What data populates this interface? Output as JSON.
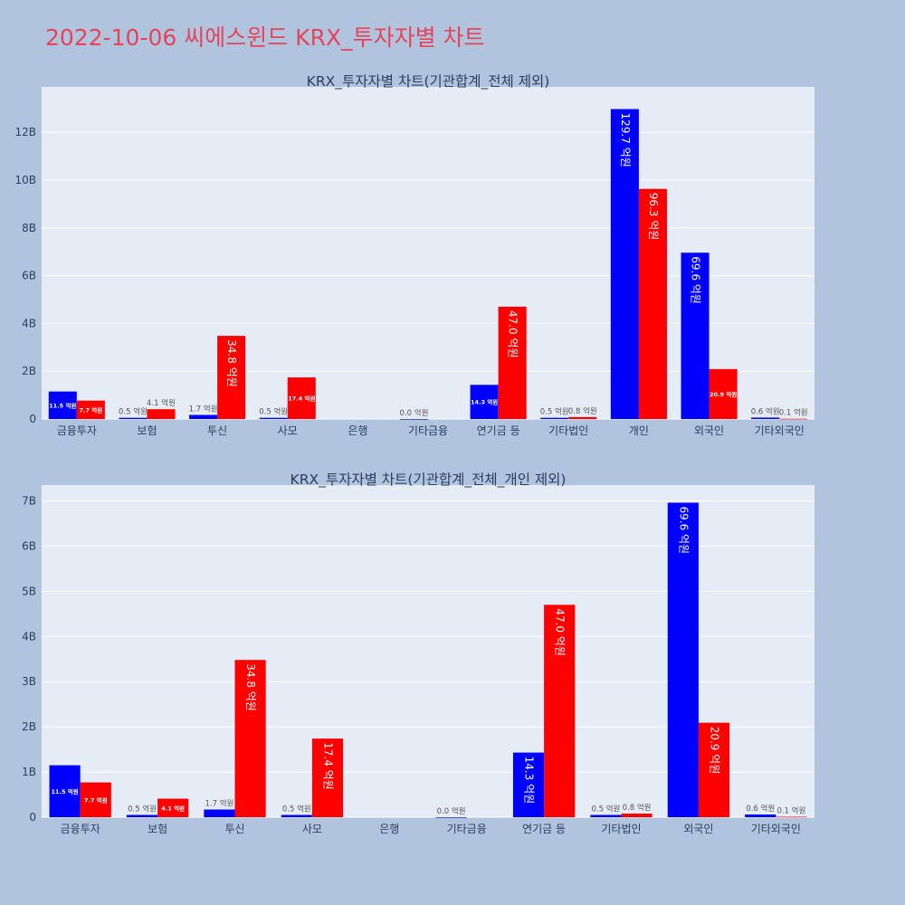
{
  "page": {
    "title": "2022-10-06 씨에스윈드 KRX_투자자별 차트",
    "colors": {
      "background": "#b0c4de",
      "plot_bg": "#e5ecf6",
      "title": "#e8435a",
      "series_1": "#0000ff",
      "series_2": "#ff0000"
    }
  },
  "chart_data": [
    {
      "type": "bar",
      "title": "KRX_투자자별 차트(기관합계_전체 제외)",
      "categories": [
        "금융투자",
        "보험",
        "투신",
        "사모",
        "은행",
        "기타금융",
        "연기금 등",
        "기타법인",
        "개인",
        "외국인",
        "기타외국인"
      ],
      "series": [
        {
          "color": "#0000ff",
          "values": [
            1150000000,
            50000000,
            170000000,
            50000000,
            null,
            0,
            1430000000,
            50000000,
            12970000000,
            6960000000,
            60000000
          ],
          "labels": [
            "11.5 억원",
            "0.5 억원",
            "1.7 억원",
            "0.5 억원",
            "",
            "0.0 억원",
            "14.3 억원",
            "0.5 억원",
            "129.7 억원",
            "69.6 억원",
            "0.6 억원"
          ]
        },
        {
          "color": "#ff0000",
          "values": [
            770000000,
            410000000,
            3480000000,
            1740000000,
            null,
            null,
            4700000000,
            80000000,
            9630000000,
            2090000000,
            10000000
          ],
          "labels": [
            "7.7 억원",
            "4.1 억원",
            "34.8 억원",
            "17.4 억원",
            "",
            "",
            "47.0 억원",
            "0.8 억원",
            "96.3 억원",
            "20.9 억원",
            "0.1 억원"
          ]
        }
      ],
      "y_ticks": [
        0,
        2000000000,
        4000000000,
        6000000000,
        8000000000,
        10000000000,
        12000000000
      ],
      "y_tick_labels": [
        "0",
        "2B",
        "4B",
        "6B",
        "8B",
        "10B",
        "12B"
      ],
      "ylim": [
        0,
        13900000000
      ],
      "grid": true
    },
    {
      "type": "bar",
      "title": "KRX_투자자별 차트(기관합계_전체_개인 제외)",
      "categories": [
        "금융투자",
        "보험",
        "투신",
        "사모",
        "은행",
        "기타금융",
        "연기금 등",
        "기타법인",
        "외국인",
        "기타외국인"
      ],
      "series": [
        {
          "color": "#0000ff",
          "values": [
            1150000000,
            50000000,
            170000000,
            50000000,
            null,
            0,
            1430000000,
            50000000,
            6960000000,
            60000000
          ],
          "labels": [
            "11.5 억원",
            "0.5 억원",
            "1.7 억원",
            "0.5 억원",
            "",
            "0.0 억원",
            "14.3 억원",
            "0.5 억원",
            "69.6 억원",
            "0.6 억원"
          ]
        },
        {
          "color": "#ff0000",
          "values": [
            770000000,
            410000000,
            3480000000,
            1740000000,
            null,
            null,
            4700000000,
            80000000,
            2090000000,
            10000000
          ],
          "labels": [
            "7.7 억원",
            "4.1 억원",
            "34.8 억원",
            "17.4 억원",
            "",
            "",
            "47.0 억원",
            "0.8 억원",
            "20.9 억원",
            "0.1 억원"
          ]
        }
      ],
      "y_ticks": [
        0,
        1000000000,
        2000000000,
        3000000000,
        4000000000,
        5000000000,
        6000000000,
        7000000000
      ],
      "y_tick_labels": [
        "0",
        "1B",
        "2B",
        "3B",
        "4B",
        "5B",
        "6B",
        "7B"
      ],
      "ylim": [
        0,
        7350000000
      ],
      "grid": true
    }
  ]
}
